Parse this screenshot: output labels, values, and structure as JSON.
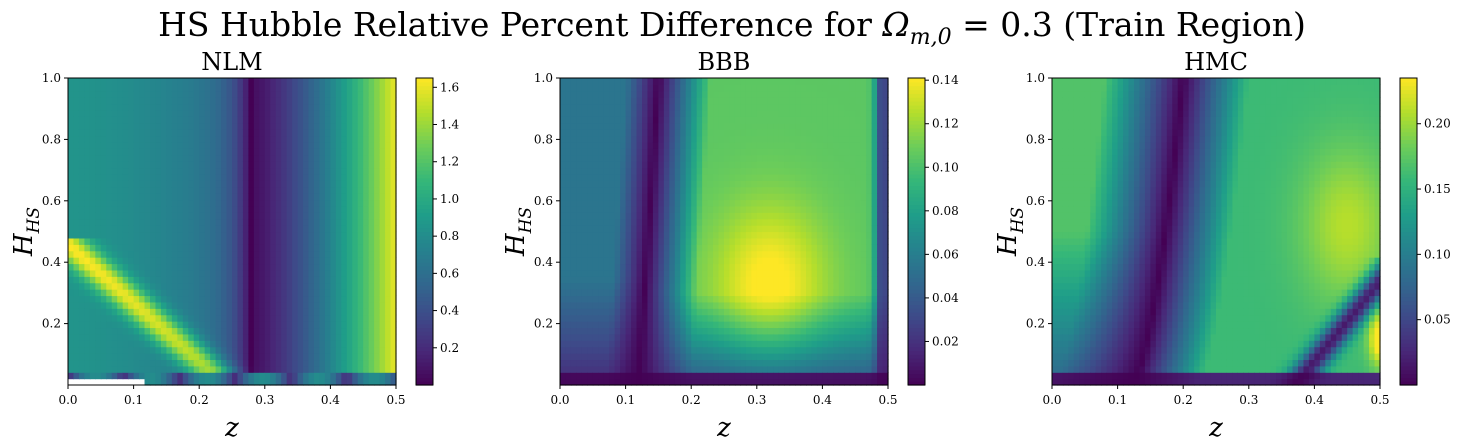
{
  "figure": {
    "title_prefix": "HS Hubble Relative Percent Difference for ",
    "title_omega": "Ω",
    "title_omega_sub": "m,0",
    "title_suffix": " = 0.3 (Train Region)"
  },
  "chart_data": [
    {
      "type": "heatmap",
      "title": "NLM",
      "xlabel": "z",
      "ylabel": "H",
      "ylabel_sub": "HS",
      "xlim": [
        0.0,
        0.5
      ],
      "ylim": [
        0.0,
        1.0
      ],
      "xticks": [
        "0.0",
        "0.1",
        "0.2",
        "0.3",
        "0.4",
        "0.5"
      ],
      "yticks": [
        "0.2",
        "0.4",
        "0.6",
        "0.8",
        "1.0"
      ],
      "colormap": "viridis",
      "colorbar": {
        "range": [
          0.0,
          1.65
        ],
        "ticks": [
          "0.2",
          "0.4",
          "0.6",
          "0.8",
          "1.0",
          "1.2",
          "1.4",
          "1.6"
        ]
      },
      "features": {
        "value_at_z0": 0.85,
        "min_at_z": 0.28,
        "value_at_z05": 1.6,
        "diagonal_high_band_at_low_H": 1.4,
        "missing_cells_bottom_left": true
      }
    },
    {
      "type": "heatmap",
      "title": "BBB",
      "xlabel": "z",
      "ylabel": "H",
      "ylabel_sub": "HS",
      "xlim": [
        0.0,
        0.5
      ],
      "ylim": [
        0.0,
        1.0
      ],
      "xticks": [
        "0.0",
        "0.1",
        "0.2",
        "0.3",
        "0.4",
        "0.5"
      ],
      "yticks": [
        "0.2",
        "0.4",
        "0.6",
        "0.8",
        "1.0"
      ],
      "colormap": "viridis",
      "colorbar": {
        "range": [
          0.0,
          0.141
        ],
        "ticks": [
          "0.02",
          "0.04",
          "0.06",
          "0.08",
          "0.10",
          "0.12",
          "0.14"
        ]
      },
      "features": {
        "left_plateau": 0.055,
        "min_curve_z_at_H1": 0.15,
        "min_curve_z_at_H0": 0.12,
        "peak": {
          "z": 0.32,
          "H": 0.33,
          "value": 0.14
        },
        "right_edge_dip_z": 0.49
      }
    },
    {
      "type": "heatmap",
      "title": "HMC",
      "xlabel": "z",
      "ylabel": "H",
      "ylabel_sub": "HS",
      "xlim": [
        0.0,
        0.5
      ],
      "ylim": [
        0.0,
        1.0
      ],
      "xticks": [
        "0.0",
        "0.1",
        "0.2",
        "0.3",
        "0.4",
        "0.5"
      ],
      "yticks": [
        "0.2",
        "0.4",
        "0.6",
        "0.8",
        "1.0"
      ],
      "colormap": "viridis",
      "colorbar": {
        "range": [
          0.0,
          0.235
        ],
        "ticks": [
          "0.05",
          "0.10",
          "0.15",
          "0.20"
        ]
      },
      "features": {
        "left_band": 0.17,
        "min_curve_z_at_H1": 0.2,
        "min_curve_z_at_H0": 0.12,
        "hotspot": {
          "z": 0.45,
          "H": 0.52,
          "value": 0.21
        },
        "corner_hotspot": {
          "z": 0.5,
          "H": 0.15,
          "value": 0.2
        }
      }
    }
  ]
}
